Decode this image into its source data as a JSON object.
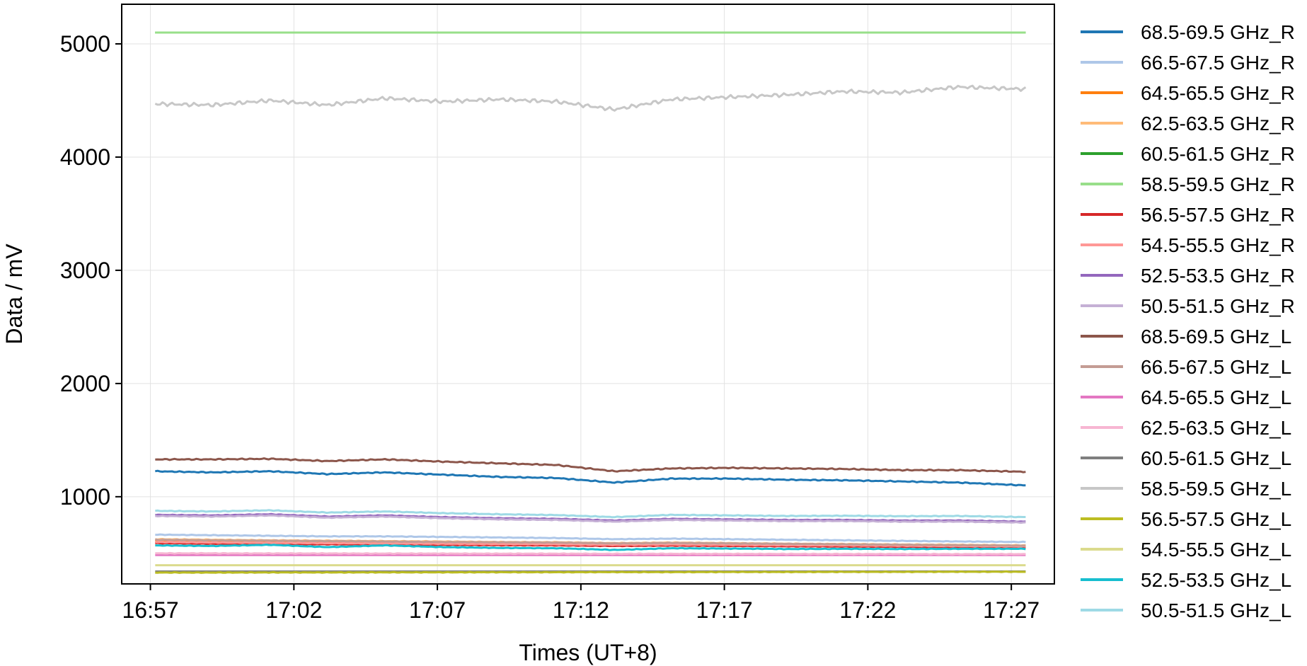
{
  "chart_data": {
    "type": "line",
    "xlabel": "Times (UT+8)",
    "ylabel": "Data / mV",
    "x_ticks": [
      "16:57",
      "17:02",
      "17:07",
      "17:12",
      "17:17",
      "17:22",
      "17:27"
    ],
    "y_ticks": [
      "1000",
      "2000",
      "3000",
      "4000",
      "5000"
    ],
    "xlim": [
      "16:56:00",
      "17:28:30"
    ],
    "ylim": [
      230,
      5350
    ],
    "x_start": "16:57:10",
    "x_end": "17:27:30",
    "grid": true,
    "legend_position": "outside right",
    "x": [
      "16:57:10",
      "16:59:10",
      "17:01:10",
      "17:03:10",
      "17:05:10",
      "17:07:10",
      "17:09:10",
      "17:11:10",
      "17:13:10",
      "17:15:10",
      "17:17:10",
      "17:19:10",
      "17:21:10",
      "17:23:10",
      "17:25:10",
      "17:27:30"
    ],
    "series": [
      {
        "name": "68.5-69.5 GHz_R",
        "color": "#1f77b4",
        "values": [
          1225,
          1215,
          1225,
          1200,
          1215,
          1195,
          1175,
          1165,
          1125,
          1160,
          1160,
          1150,
          1145,
          1135,
          1125,
          1100
        ]
      },
      {
        "name": "66.5-67.5 GHz_R",
        "color": "#aec7e8",
        "values": [
          665,
          660,
          655,
          650,
          650,
          645,
          640,
          635,
          625,
          630,
          625,
          620,
          615,
          610,
          605,
          600
        ]
      },
      {
        "name": "64.5-65.5 GHz_R",
        "color": "#ff7f0e",
        "values": [
          610,
          605,
          600,
          600,
          595,
          590,
          590,
          585,
          580,
          585,
          580,
          575,
          575,
          570,
          565,
          560
        ]
      },
      {
        "name": "62.5-63.5 GHz_R",
        "color": "#ffbb78",
        "values": [
          625,
          620,
          615,
          612,
          608,
          605,
          600,
          598,
          590,
          595,
          590,
          585,
          582,
          578,
          575,
          570
        ]
      },
      {
        "name": "60.5-61.5 GHz_R",
        "color": "#2ca02c",
        "values": [
          5100,
          5100,
          5100,
          5100,
          5100,
          5100,
          5100,
          5100,
          5100,
          5100,
          5100,
          5100,
          5100,
          5100,
          5100,
          5100
        ]
      },
      {
        "name": "58.5-59.5 GHz_R",
        "color": "#98df8a",
        "values": [
          5100,
          5100,
          5100,
          5100,
          5100,
          5100,
          5100,
          5100,
          5100,
          5100,
          5100,
          5100,
          5100,
          5100,
          5100,
          5100
        ]
      },
      {
        "name": "56.5-57.5 GHz_R",
        "color": "#d62728",
        "values": [
          590,
          585,
          582,
          580,
          578,
          575,
          572,
          570,
          565,
          568,
          565,
          562,
          560,
          558,
          555,
          552
        ]
      },
      {
        "name": "54.5-55.5 GHz_R",
        "color": "#ff9896",
        "values": [
          600,
          596,
          593,
          590,
          588,
          585,
          582,
          580,
          575,
          578,
          575,
          572,
          570,
          567,
          564,
          561
        ]
      },
      {
        "name": "52.5-53.5 GHz_R",
        "color": "#9467bd",
        "values": [
          840,
          835,
          845,
          825,
          835,
          820,
          810,
          805,
          790,
          805,
          800,
          795,
          795,
          790,
          790,
          780
        ]
      },
      {
        "name": "50.5-51.5 GHz_R",
        "color": "#c5b0d5",
        "values": [
          830,
          825,
          835,
          815,
          825,
          810,
          800,
          795,
          780,
          795,
          790,
          785,
          785,
          780,
          780,
          772
        ]
      },
      {
        "name": "68.5-69.5 GHz_L",
        "color": "#8c564b",
        "values": [
          1330,
          1330,
          1335,
          1315,
          1330,
          1310,
          1295,
          1280,
          1225,
          1250,
          1255,
          1250,
          1245,
          1235,
          1235,
          1220
        ]
      },
      {
        "name": "66.5-67.5 GHz_L",
        "color": "#c49c94",
        "values": [
          620,
          615,
          612,
          608,
          605,
          600,
          598,
          595,
          588,
          592,
          588,
          584,
          580,
          576,
          572,
          568
        ]
      },
      {
        "name": "64.5-65.5 GHz_L",
        "color": "#e377c2",
        "values": [
          485,
          485,
          485,
          485,
          485,
          485,
          485,
          485,
          485,
          485,
          485,
          485,
          485,
          485,
          485,
          485
        ]
      },
      {
        "name": "62.5-63.5 GHz_L",
        "color": "#f7b6d2",
        "values": [
          500,
          500,
          499,
          499,
          498,
          498,
          497,
          497,
          496,
          496,
          495,
          495,
          494,
          494,
          493,
          493
        ]
      },
      {
        "name": "60.5-61.5 GHz_L",
        "color": "#7f7f7f",
        "values": [
          340,
          340,
          340,
          340,
          340,
          340,
          340,
          340,
          340,
          340,
          340,
          340,
          340,
          340,
          340,
          340
        ]
      },
      {
        "name": "58.5-59.5 GHz_L",
        "color": "#c7c7c7",
        "values": [
          4470,
          4460,
          4500,
          4460,
          4520,
          4490,
          4510,
          4490,
          4420,
          4510,
          4530,
          4550,
          4580,
          4570,
          4620,
          4600
        ]
      },
      {
        "name": "56.5-57.5 GHz_L",
        "color": "#bcbd22",
        "values": [
          330,
          330,
          331,
          331,
          332,
          332,
          333,
          333,
          334,
          334,
          335,
          335,
          336,
          336,
          337,
          337
        ]
      },
      {
        "name": "54.5-55.5 GHz_L",
        "color": "#dbdb8d",
        "values": [
          395,
          395,
          395,
          395,
          395,
          395,
          395,
          395,
          395,
          395,
          395,
          395,
          395,
          395,
          395,
          395
        ]
      },
      {
        "name": "52.5-53.5 GHz_L",
        "color": "#17becf",
        "values": [
          570,
          565,
          575,
          555,
          570,
          555,
          548,
          545,
          530,
          545,
          542,
          538,
          540,
          538,
          540,
          540
        ]
      },
      {
        "name": "50.5-51.5 GHz_L",
        "color": "#9edae5",
        "values": [
          875,
          870,
          880,
          860,
          870,
          855,
          845,
          838,
          820,
          840,
          835,
          830,
          832,
          828,
          830,
          820
        ]
      }
    ]
  }
}
